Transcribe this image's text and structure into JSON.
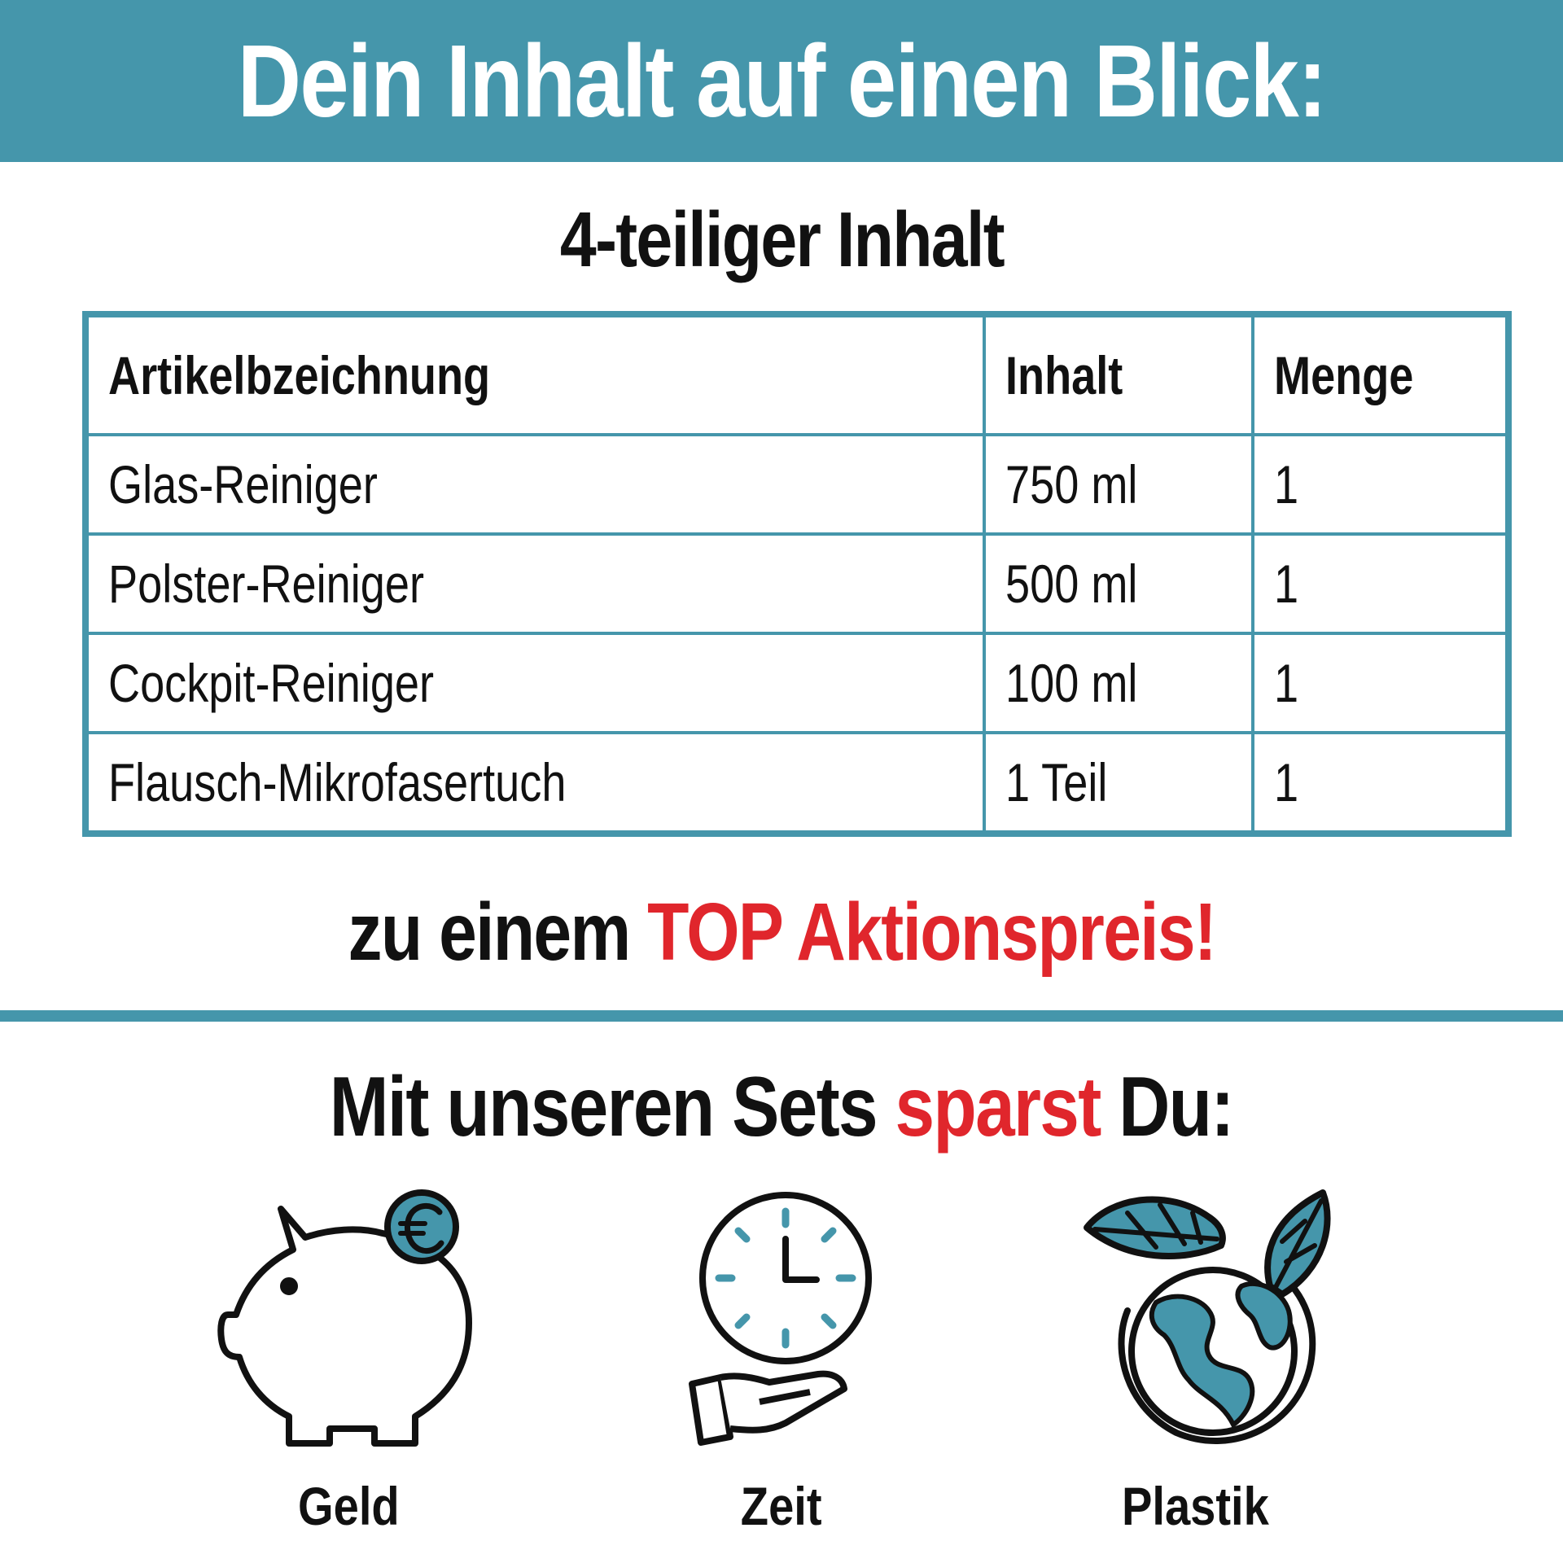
{
  "header": {
    "title": "Dein Inhalt auf einen Blick:"
  },
  "subtitle": "4-teiliger Inhalt",
  "table": {
    "headers": [
      "Artikelbzeichnung",
      "Inhalt",
      "Menge"
    ],
    "rows": [
      [
        "Glas-Reiniger",
        "750 ml",
        "1"
      ],
      [
        "Polster-Reiniger",
        "500 ml",
        "1"
      ],
      [
        "Cockpit-Reiniger",
        "100 ml",
        "1"
      ],
      [
        "Flausch-Mikrofasertuch",
        "1 Teil",
        "1"
      ]
    ]
  },
  "promo": {
    "prefix": "zu einem ",
    "highlight": "TOP Aktionspreis!"
  },
  "savings": {
    "prefix": "Mit unseren Sets ",
    "highlight": "sparst",
    "suffix": " Du:"
  },
  "benefits": [
    {
      "label": "Geld",
      "icon": "piggy-bank-euro-icon"
    },
    {
      "label": "Zeit",
      "icon": "clock-hand-icon"
    },
    {
      "label": "Plastik",
      "icon": "globe-leaves-icon"
    }
  ],
  "colors": {
    "accent": "#4596ab",
    "highlight": "#e0262c",
    "text": "#111111"
  }
}
